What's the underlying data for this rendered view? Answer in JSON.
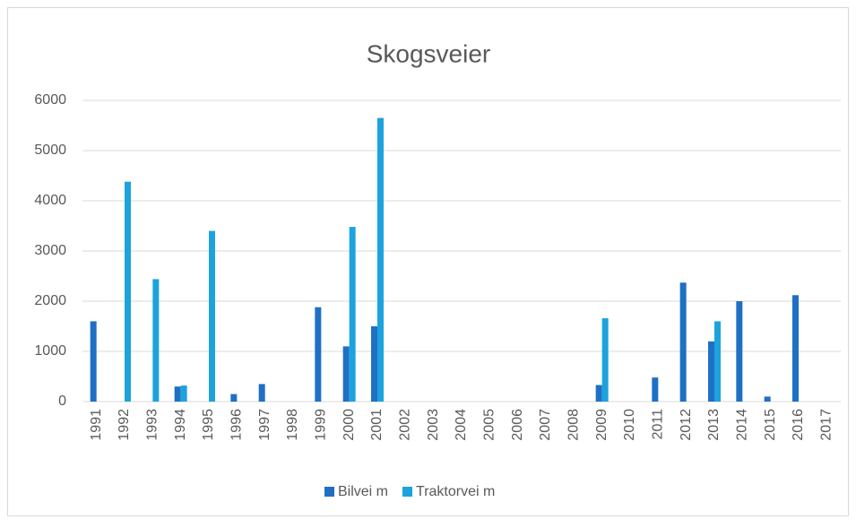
{
  "chart_data": {
    "type": "bar",
    "title": "Skogsveier",
    "categories": [
      "1991",
      "1992",
      "1993",
      "1994",
      "1995",
      "1996",
      "1997",
      "1998",
      "1999",
      "2000",
      "2001",
      "2002",
      "2003",
      "2004",
      "2005",
      "2006",
      "2007",
      "2008",
      "2009",
      "2010",
      "2011",
      "2012",
      "2013",
      "2014",
      "2015",
      "2016",
      "2017"
    ],
    "series": [
      {
        "name": "Bilvei m",
        "color": "#1f6fc5",
        "values": [
          1600,
          0,
          0,
          300,
          0,
          150,
          350,
          0,
          1880,
          1100,
          1500,
          0,
          0,
          0,
          0,
          0,
          0,
          0,
          330,
          0,
          480,
          2370,
          1200,
          2000,
          100,
          2120,
          0
        ]
      },
      {
        "name": "Traktorvei m",
        "color": "#1ca3dd",
        "values": [
          0,
          4380,
          2440,
          320,
          3400,
          0,
          0,
          0,
          0,
          3480,
          5650,
          0,
          0,
          0,
          0,
          0,
          0,
          0,
          1660,
          0,
          0,
          0,
          1600,
          0,
          0,
          0,
          0
        ]
      }
    ],
    "ylim": [
      0,
      6000
    ],
    "yticks": [
      0,
      1000,
      2000,
      3000,
      4000,
      5000,
      6000
    ],
    "grid": true,
    "legend": "bottom"
  }
}
